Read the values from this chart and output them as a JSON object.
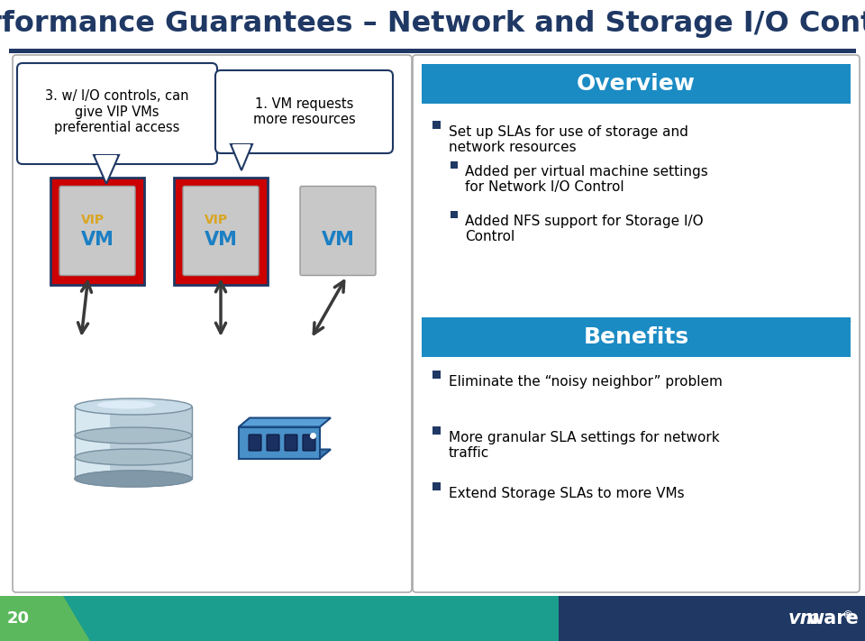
{
  "title": "Performance Guarantees – Network and Storage I/O Control",
  "title_color": "#1F3864",
  "title_fontsize": 23,
  "separator_color": "#1F3864",
  "overview_header_bg": "#1B8BC4",
  "overview_header_text": "Overview",
  "overview_bullet1": "Set up SLAs for use of storage and\nnetwork resources",
  "overview_sub_bullets": [
    "Added per virtual machine settings\nfor Network I/O Control",
    "Added NFS support for Storage I/O\nControl"
  ],
  "benefits_header_bg": "#1B8BC4",
  "benefits_header_text": "Benefits",
  "benefits_bullets": [
    "Eliminate the “noisy neighbor” problem",
    "More granular SLA settings for network\ntraffic",
    "Extend Storage SLAs to more VMs"
  ],
  "bubble1_text": "3. w/ I/O controls, can\ngive VIP VMs\npreferential access",
  "bubble2_text": "1. VM requests\nmore resources",
  "footer_bg_mid": "#1B9E8E",
  "footer_bg_right": "#1F3864",
  "footer_bg_green": "#5CB85C",
  "footer_number": "20",
  "arrow_color": "#3A3A3A",
  "red_border": "#CC0000",
  "vm_box_bg": "#C8C8C8",
  "vm_text_color": "#1B7FC4",
  "vip_text_color": "#DAA520",
  "panel_edge": "#AAAAAA",
  "bubble_edge": "#1F3864",
  "bullet_color": "#1F3864",
  "right_panel_bg": "#F0F4FA"
}
